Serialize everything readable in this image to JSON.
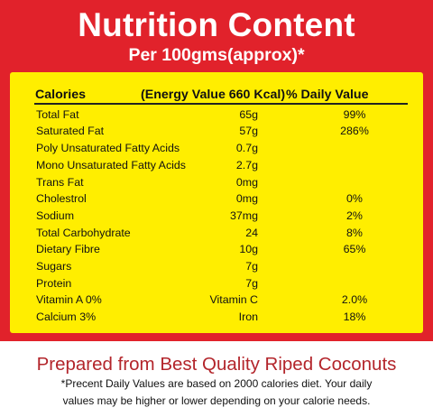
{
  "header": {
    "title": "Nutrition Content",
    "subtitle": "Per 100gms(approx)*"
  },
  "table": {
    "headers": {
      "calories": "Calories",
      "energy": "(Energy Value 660 Kcal)",
      "daily_value": "% Daily Value"
    },
    "rows": [
      {
        "name": "Total Fat",
        "amount": "65g",
        "daily": "99%"
      },
      {
        "name": "Saturated Fat",
        "amount": "57g",
        "daily": "286%"
      },
      {
        "name": "Poly Unsaturated Fatty Acids",
        "amount": "0.7g",
        "daily": ""
      },
      {
        "name": "Mono Unsaturated Fatty Acids",
        "amount": "2.7g",
        "daily": ""
      },
      {
        "name": "Trans Fat",
        "amount": "0mg",
        "daily": ""
      },
      {
        "name": "Cholestrol",
        "amount": "0mg",
        "daily": "0%"
      },
      {
        "name": "Sodium",
        "amount": "37mg",
        "daily": "2%"
      },
      {
        "name": "Total Carbohydrate",
        "amount": "24",
        "daily": "8%"
      },
      {
        "name": "Dietary Fibre",
        "amount": "10g",
        "daily": "65%"
      },
      {
        "name": "Sugars",
        "amount": "7g",
        "daily": ""
      },
      {
        "name": "Protein",
        "amount": "7g",
        "daily": ""
      },
      {
        "name": "Vitamin A 0%",
        "amount": "Vitamin C",
        "daily": "2.0%"
      },
      {
        "name": "Calcium 3%",
        "amount": "Iron",
        "daily": "18%"
      }
    ]
  },
  "footer": {
    "prepared": "Prepared from Best Quality Riped Coconuts",
    "note_line1": "*Precent Daily Values are based on 2000 calories diet. Your daily",
    "note_line2": "values may be higher or lower depending on your calorie needs."
  },
  "colors": {
    "banner_red": "#e1222b",
    "panel_yellow": "#ffee00",
    "prepared_red": "#b3252b"
  }
}
